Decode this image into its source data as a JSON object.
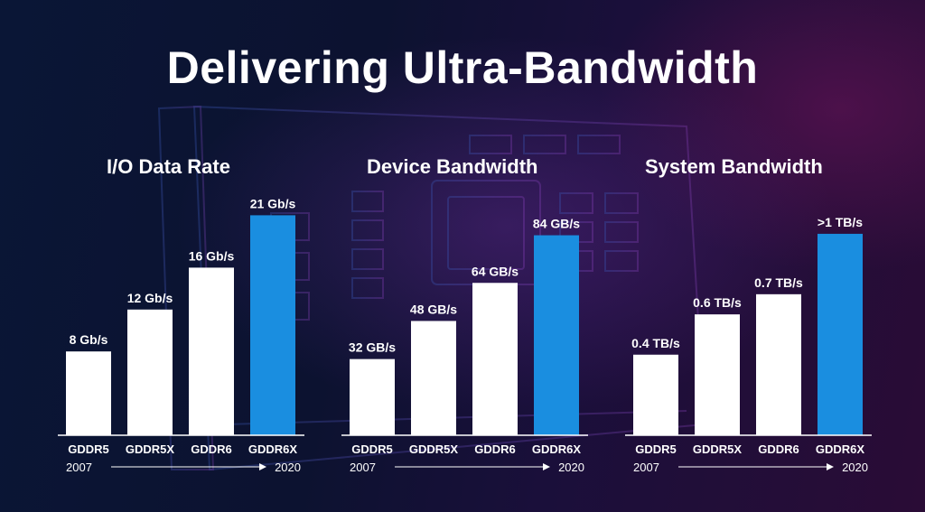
{
  "slide": {
    "title": "Delivering Ultra-Bandwidth"
  },
  "colors": {
    "standard_bar": "#ffffff",
    "highlight_bar": "#1a8ee0"
  },
  "chart_data": [
    {
      "type": "bar",
      "title": "I/O Data Rate",
      "categories": [
        "GDDR5",
        "GDDR5X",
        "GDDR6",
        "GDDR6X"
      ],
      "values": [
        8,
        12,
        16,
        21
      ],
      "value_labels": [
        "8 Gb/s",
        "12 Gb/s",
        "16 Gb/s",
        "21 Gb/s"
      ],
      "highlight_index": 3,
      "ylim": [
        0,
        25
      ],
      "timeline": {
        "start": "2007",
        "end": "2020"
      },
      "grid": false
    },
    {
      "type": "bar",
      "title": "Device Bandwidth",
      "categories": [
        "GDDR5",
        "GDDR5X",
        "GDDR6",
        "GDDR6X"
      ],
      "values": [
        32,
        48,
        64,
        84
      ],
      "value_labels": [
        "32 GB/s",
        "48 GB/s",
        "64 GB/s",
        "84 GB/s"
      ],
      "highlight_index": 3,
      "ylim": [
        0,
        110
      ],
      "timeline": {
        "start": "2007",
        "end": "2020"
      },
      "grid": false
    },
    {
      "type": "bar",
      "title": "System Bandwidth",
      "categories": [
        "GDDR5",
        "GDDR5X",
        "GDDR6",
        "GDDR6X"
      ],
      "values": [
        0.4,
        0.6,
        0.7,
        1.0
      ],
      "value_labels": [
        "0.4 TB/s",
        "0.6 TB/s",
        "0.7 TB/s",
        ">1 TB/s"
      ],
      "highlight_index": 3,
      "ylim": [
        0,
        1.3
      ],
      "timeline": {
        "start": "2007",
        "end": "2020"
      },
      "grid": false
    }
  ]
}
